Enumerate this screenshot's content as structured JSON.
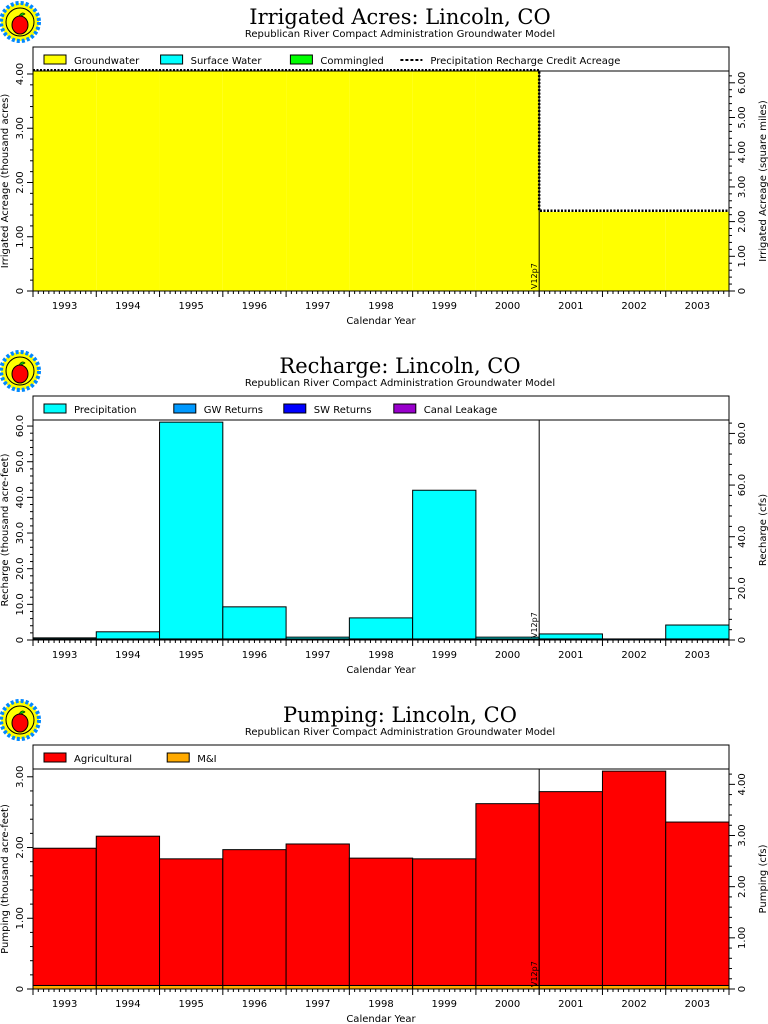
{
  "chart_data": [
    {
      "type": "area",
      "title": "Irrigated Acres: Lincoln, CO",
      "subtitle": "Republican River Compact Administration Groundwater Model",
      "xlabel": "Calendar Year",
      "ylabel": "Irrigated Acreage (thousand acres)",
      "ylabel_right": "Irrigated Acreage (square miles)",
      "categories": [
        "1993",
        "1994",
        "1995",
        "1996",
        "1997",
        "1998",
        "1999",
        "2000",
        "2001",
        "2002",
        "2003"
      ],
      "ylim": [
        0,
        4.055
      ],
      "ylim_right": [
        0,
        6.34
      ],
      "yticks": [
        "0",
        "1.00",
        "2.00",
        "3.00",
        "4.00"
      ],
      "yticks_right": [
        "0",
        "1.00",
        "2.00",
        "3.00",
        "4.00",
        "5.00",
        "6.00"
      ],
      "marker_label": "V12p7",
      "marker_year": "2001",
      "legend": [
        {
          "name": "Groundwater",
          "color": "#ffff00",
          "kind": "box"
        },
        {
          "name": "Surface Water",
          "color": "#00ffff",
          "kind": "box"
        },
        {
          "name": "Commingled",
          "color": "#00ff00",
          "kind": "box"
        },
        {
          "name": "Precipitation Recharge Credit Acreage",
          "color": "#000000",
          "kind": "dash"
        }
      ],
      "series": [
        {
          "name": "Groundwater",
          "color": "#ffff00",
          "values": [
            4.05,
            4.05,
            4.05,
            4.05,
            4.05,
            4.05,
            4.05,
            4.05,
            1.46,
            1.46,
            1.46
          ]
        },
        {
          "name": "Surface Water",
          "color": "#00ffff",
          "values": [
            0,
            0,
            0,
            0,
            0,
            0,
            0,
            0,
            0,
            0,
            0
          ]
        },
        {
          "name": "Commingled",
          "color": "#00ff00",
          "values": [
            0,
            0,
            0,
            0,
            0,
            0,
            0,
            0,
            0,
            0,
            0
          ]
        }
      ],
      "line": {
        "name": "Precipitation Recharge Credit Acreage",
        "values": [
          4.05,
          4.05,
          4.05,
          4.05,
          4.05,
          4.05,
          4.05,
          4.05,
          1.46,
          1.46,
          1.46
        ]
      }
    },
    {
      "type": "bar",
      "title": "Recharge: Lincoln, CO",
      "subtitle": "Republican River Compact Administration Groundwater Model",
      "xlabel": "Calendar Year",
      "ylabel": "Recharge (thousand acre-feet)",
      "ylabel_right": "Recharge (cfs)",
      "categories": [
        "1993",
        "1994",
        "1995",
        "1996",
        "1997",
        "1998",
        "1999",
        "2000",
        "2001",
        "2002",
        "2003"
      ],
      "ylim": [
        0,
        61.7
      ],
      "ylim_right": [
        0,
        85.2
      ],
      "yticks": [
        "0",
        "10.0",
        "20.0",
        "30.0",
        "40.0",
        "50.0",
        "60.0"
      ],
      "yticks_right": [
        "0",
        "20.0",
        "40.0",
        "60.0",
        "80.0"
      ],
      "marker_label": "V12p7",
      "marker_year": "2001",
      "legend": [
        {
          "name": "Precipitation",
          "color": "#00ffff",
          "kind": "box"
        },
        {
          "name": "GW Returns",
          "color": "#0099ff",
          "kind": "box"
        },
        {
          "name": "SW Returns",
          "color": "#0000ff",
          "kind": "box"
        },
        {
          "name": "Canal Leakage",
          "color": "#9900cc",
          "kind": "box"
        }
      ],
      "series": [
        {
          "name": "GW Returns",
          "color": "#0099ff",
          "values": [
            0.3,
            0.3,
            0.3,
            0.3,
            0.3,
            0.3,
            0.3,
            0.3,
            0.3,
            0.3,
            0.3
          ]
        },
        {
          "name": "Precipitation",
          "color": "#00ffff",
          "values": [
            0.3,
            2.0,
            60.8,
            9.0,
            0.5,
            5.9,
            41.7,
            0.5,
            1.4,
            0.0,
            3.9
          ]
        },
        {
          "name": "SW Returns",
          "color": "#0000ff",
          "values": [
            0,
            0,
            0,
            0,
            0,
            0,
            0,
            0,
            0,
            0,
            0
          ]
        },
        {
          "name": "Canal Leakage",
          "color": "#9900cc",
          "values": [
            0,
            0,
            0,
            0,
            0,
            0,
            0,
            0,
            0,
            0,
            0
          ]
        }
      ]
    },
    {
      "type": "bar",
      "title": "Pumping: Lincoln, CO",
      "subtitle": "Republican River Compact Administration Groundwater Model",
      "xlabel": "Calendar Year",
      "ylabel": "Pumping (thousand acre-feet)",
      "ylabel_right": "Pumping (cfs)",
      "categories": [
        "1993",
        "1994",
        "1995",
        "1996",
        "1997",
        "1998",
        "1999",
        "2000",
        "2001",
        "2002",
        "2003"
      ],
      "ylim": [
        0,
        3.11
      ],
      "ylim_right": [
        0,
        4.3
      ],
      "yticks": [
        "0",
        "1.00",
        "2.00",
        "3.00"
      ],
      "yticks_right": [
        "0",
        "1.00",
        "2.00",
        "3.00",
        "4.00"
      ],
      "marker_label": "V12p7",
      "marker_year": "2001",
      "legend": [
        {
          "name": "Agricultural",
          "color": "#ff0000",
          "kind": "box"
        },
        {
          "name": "M&I",
          "color": "#ffaa00",
          "kind": "box"
        }
      ],
      "series": [
        {
          "name": "M&I",
          "color": "#ffaa00",
          "values": [
            0.05,
            0.05,
            0.05,
            0.05,
            0.05,
            0.05,
            0.05,
            0.05,
            0.05,
            0.05,
            0.05
          ]
        },
        {
          "name": "Agricultural",
          "color": "#ff0000",
          "values": [
            1.94,
            2.11,
            1.79,
            1.92,
            2.0,
            1.8,
            1.79,
            2.57,
            2.74,
            3.03,
            2.31
          ]
        }
      ]
    }
  ]
}
